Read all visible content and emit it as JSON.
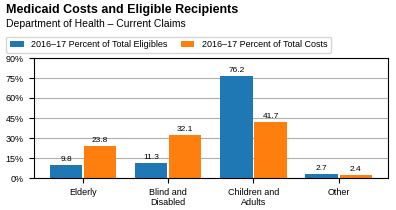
{
  "chart_data": {
    "type": "bar",
    "title": "Medicaid Costs and Eligible Recipients",
    "subtitle": "Department of Health – Current Claims",
    "categories": [
      "Elderly",
      "Blind and Disabled",
      "Children and Adults",
      "Other"
    ],
    "series": [
      {
        "name": "2016–17 Percent of Total Eligibles",
        "values": [
          9.8,
          11.3,
          76.2,
          2.7
        ]
      },
      {
        "name": "2016–17 Percent of Total Costs",
        "values": [
          23.8,
          32.1,
          41.7,
          2.4
        ]
      }
    ],
    "ylim": [
      0,
      90
    ],
    "yticks": [
      {
        "value": 0,
        "label": "0%"
      },
      {
        "value": 15,
        "label": "15%"
      },
      {
        "value": 30,
        "label": "30%"
      },
      {
        "value": 45,
        "label": "45%"
      },
      {
        "value": 60,
        "label": "60%"
      },
      {
        "value": 75,
        "label": "75%"
      },
      {
        "value": 90,
        "label": "90%"
      }
    ],
    "grid": true,
    "legend": "upper left",
    "data_labels": true
  }
}
